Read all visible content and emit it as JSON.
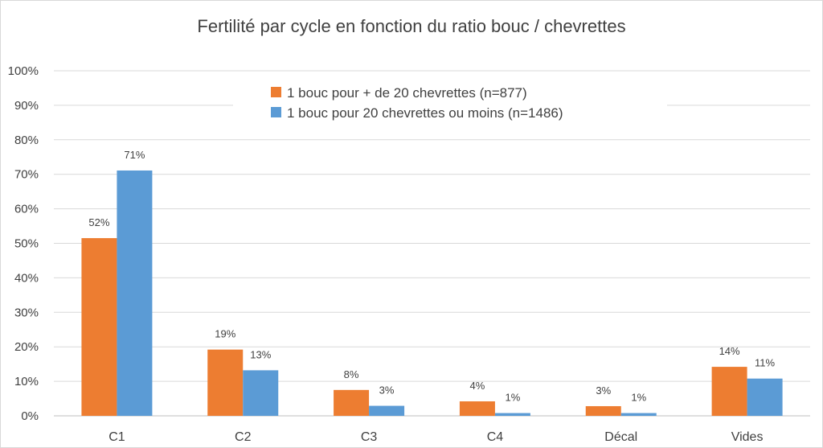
{
  "chart_data": {
    "type": "bar",
    "title": "Fertilité par cycle en fonction du ratio bouc / chevrettes",
    "xlabel": "",
    "ylabel": "",
    "categories": [
      "C1",
      "C2",
      "C3",
      "C4",
      "Décal",
      "Vides"
    ],
    "ylim": [
      0,
      100
    ],
    "yticks": [
      "0%",
      "10%",
      "20%",
      "30%",
      "40%",
      "50%",
      "60%",
      "70%",
      "80%",
      "90%",
      "100%"
    ],
    "grid": true,
    "legend_position": "top-center",
    "series": [
      {
        "name": "1 bouc pour + de 20 chevrettes  (n=877)",
        "color": "#ED7D31",
        "values": [
          51.5,
          19.2,
          7.5,
          4.2,
          2.8,
          14.2
        ],
        "labels": [
          "52%",
          "19%",
          "8%",
          "4%",
          "3%",
          "14%"
        ]
      },
      {
        "name": "1 bouc pour 20 chevrettes ou moins  (n=1486)",
        "color": "#5B9BD5",
        "values": [
          71.1,
          13.2,
          2.9,
          0.8,
          0.8,
          10.8
        ],
        "labels": [
          "71%",
          "13%",
          "3%",
          "1%",
          "1%",
          "11%"
        ]
      }
    ]
  }
}
